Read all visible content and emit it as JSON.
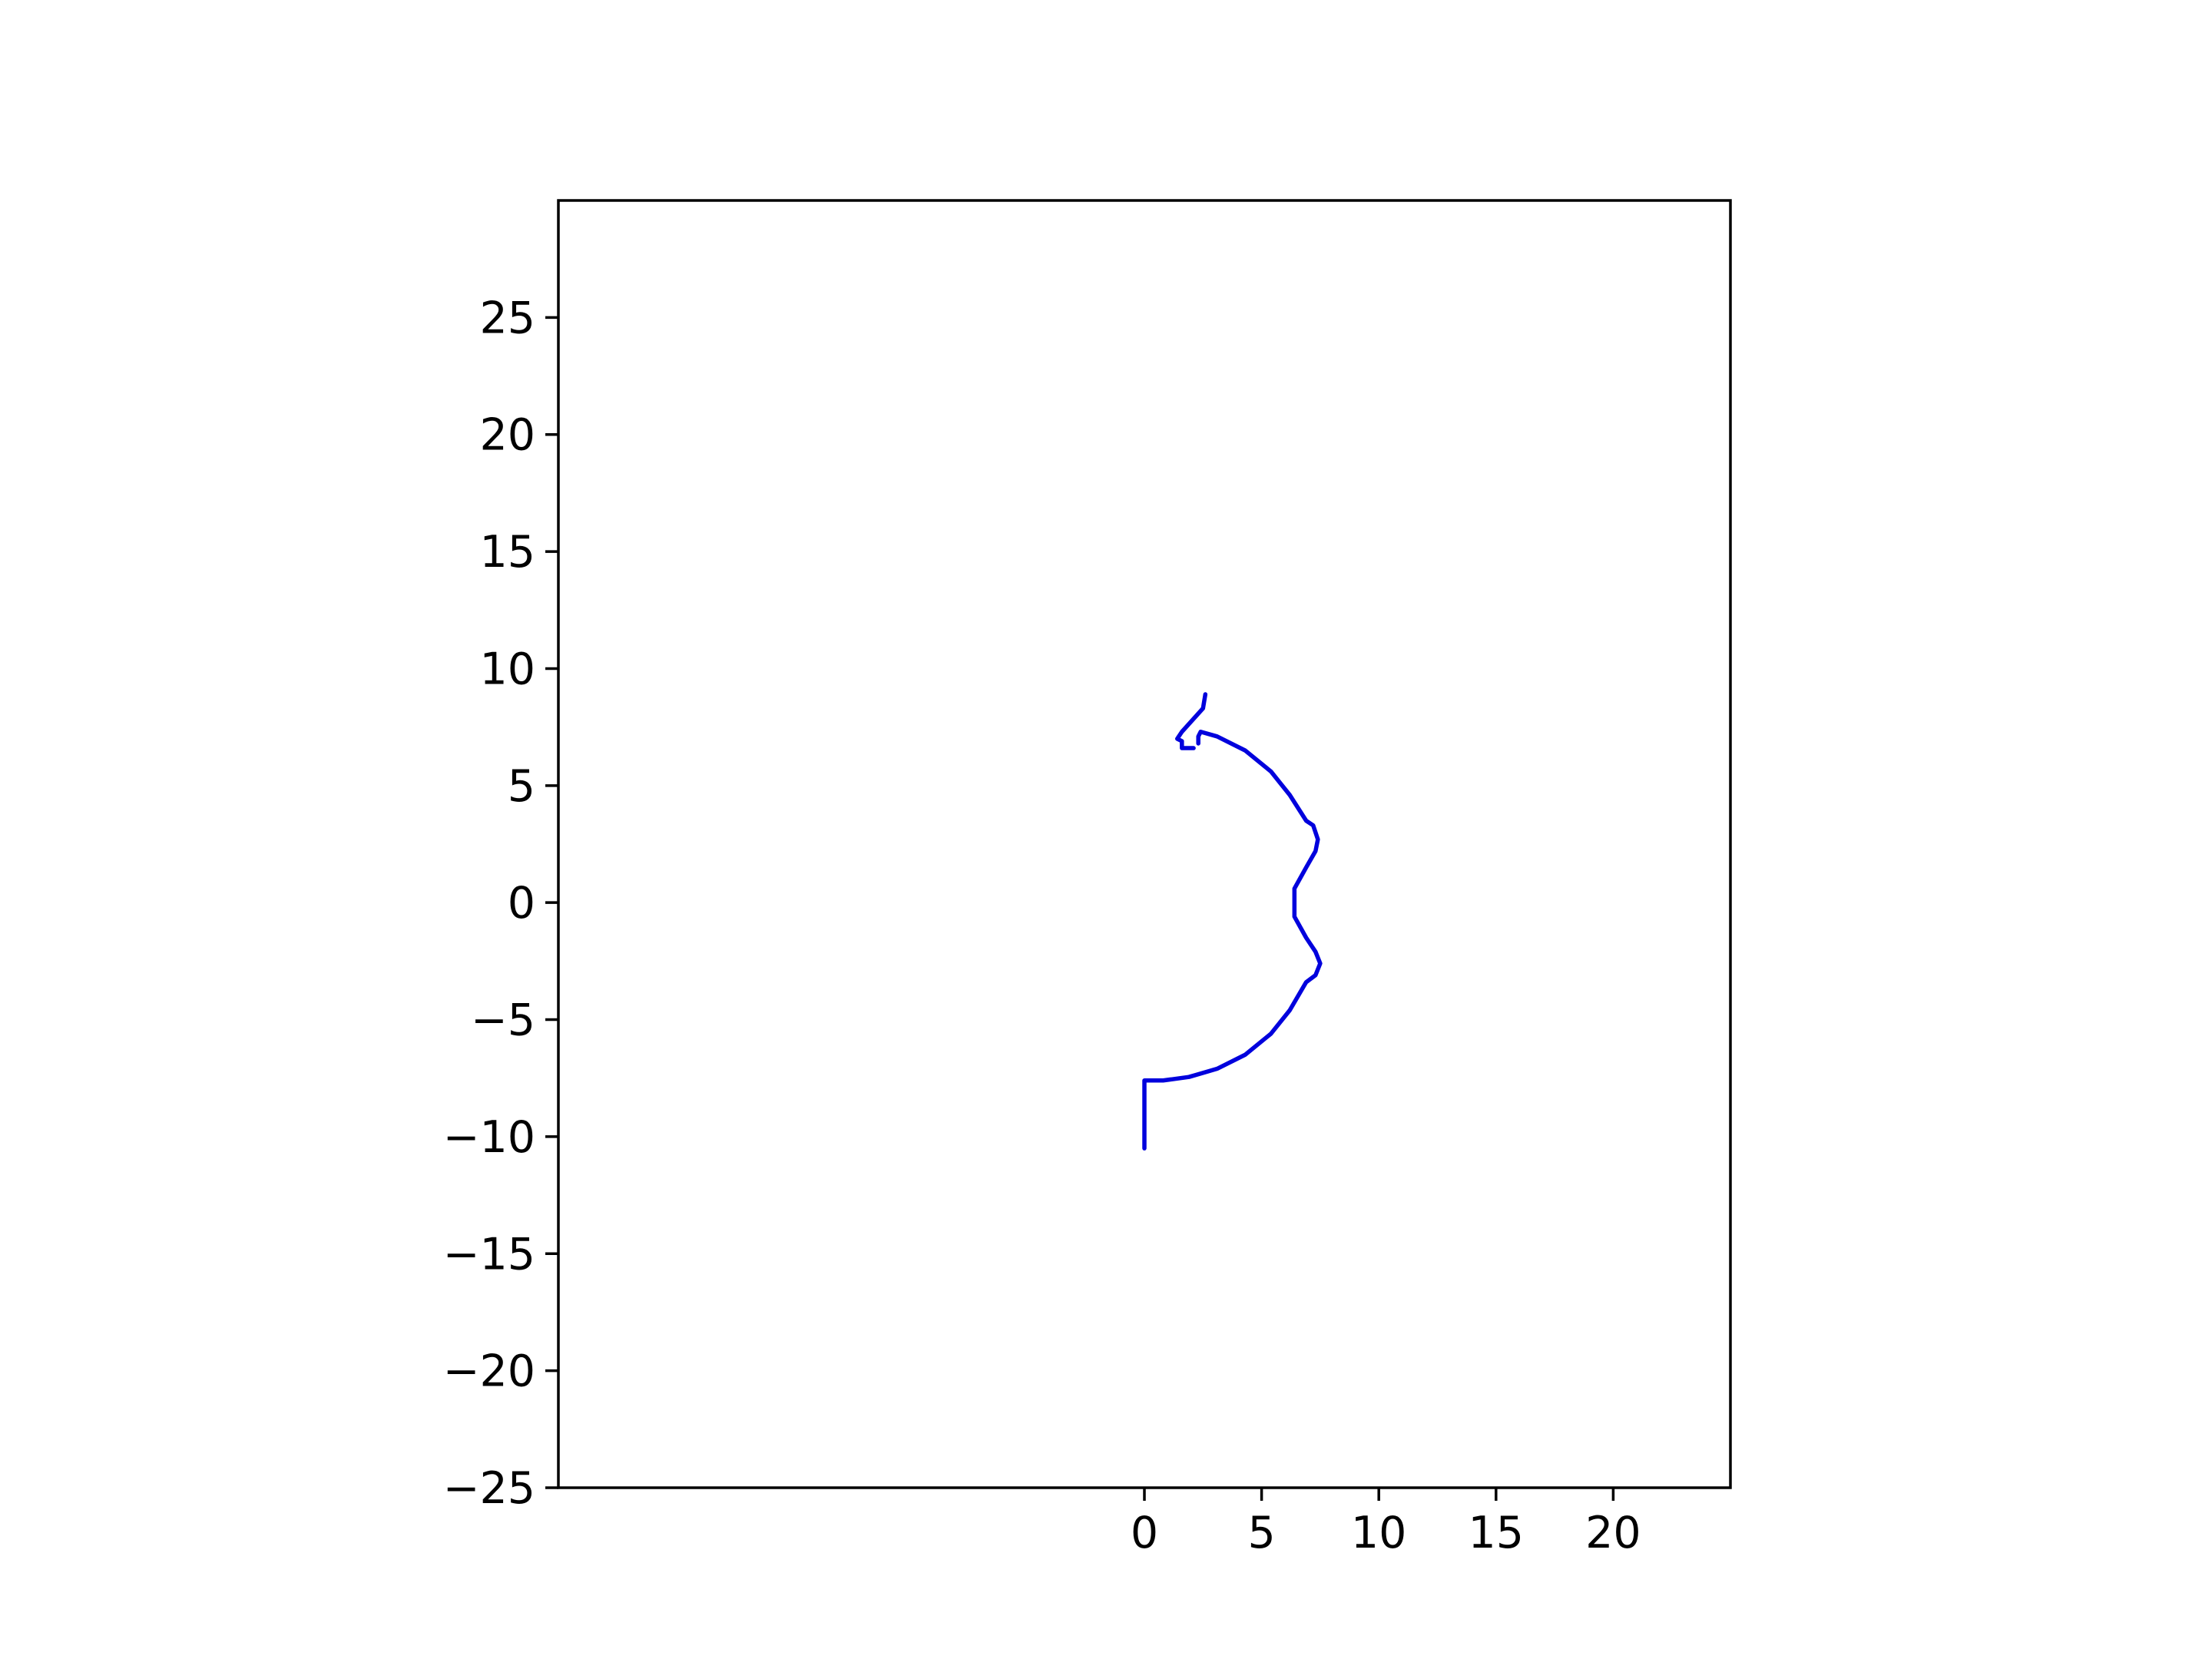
{
  "chart_data": {
    "type": "line",
    "title": "",
    "xlabel": "",
    "ylabel": "",
    "xlim": [
      -25,
      25
    ],
    "ylim": [
      -25,
      30
    ],
    "x_ticks": [
      0,
      5,
      10,
      15,
      20
    ],
    "x_tick_labels": [
      "0",
      "5",
      "10",
      "15",
      "20"
    ],
    "y_ticks": [
      -25,
      -20,
      -15,
      -10,
      -5,
      0,
      5,
      10,
      15,
      20,
      25
    ],
    "y_tick_labels": [
      "−25",
      "−20",
      "−15",
      "−10",
      "−5",
      "0",
      "5",
      "10",
      "15",
      "20",
      "25"
    ],
    "grid": false,
    "legend": false,
    "series": [
      {
        "color": "#0000dd",
        "points": [
          [
            0.0,
            -10.5
          ],
          [
            0.0,
            -7.6
          ],
          [
            0.2,
            -7.6
          ],
          [
            0.8,
            -7.6
          ],
          [
            1.9,
            -7.45
          ],
          [
            3.1,
            -7.1
          ],
          [
            4.3,
            -6.5
          ],
          [
            5.4,
            -5.6
          ],
          [
            6.2,
            -4.6
          ],
          [
            6.9,
            -3.4
          ],
          [
            7.3,
            -3.1
          ],
          [
            7.5,
            -2.6
          ],
          [
            7.3,
            -2.1
          ],
          [
            6.9,
            -1.5
          ],
          [
            6.4,
            -0.6
          ],
          [
            6.4,
            0.6
          ],
          [
            6.9,
            1.5
          ],
          [
            7.3,
            2.2
          ],
          [
            7.4,
            2.7
          ],
          [
            7.2,
            3.3
          ],
          [
            6.9,
            3.5
          ],
          [
            6.2,
            4.6
          ],
          [
            5.4,
            5.6
          ],
          [
            4.3,
            6.5
          ],
          [
            3.1,
            7.1
          ],
          [
            2.4,
            7.3
          ],
          [
            2.3,
            7.1
          ],
          [
            2.3,
            6.8
          ]
        ]
      },
      {
        "color": "#0000dd",
        "points": [
          [
            2.6,
            8.9
          ],
          [
            2.5,
            8.3
          ],
          [
            1.6,
            7.3
          ],
          [
            1.4,
            7.0
          ],
          [
            1.6,
            6.9
          ],
          [
            1.6,
            6.6
          ],
          [
            2.1,
            6.6
          ]
        ]
      }
    ]
  }
}
